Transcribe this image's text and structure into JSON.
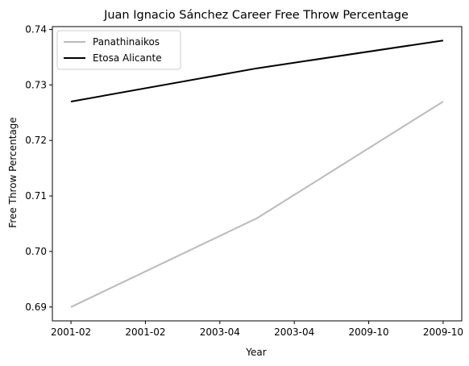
{
  "chart_data": {
    "type": "line",
    "title": "Juan Ignacio Sánchez Career Free Throw Percentage",
    "xlabel": "Year",
    "ylabel": "Free Throw Percentage",
    "x_tick_labels": [
      "2001-02",
      "2001-02",
      "2003-04",
      "2003-04",
      "2009-10",
      "2009-10"
    ],
    "x_range": [
      -0.1,
      2.1
    ],
    "x_tick_positions": [
      0,
      0.4,
      0.8,
      1.2,
      1.6,
      2.0
    ],
    "y_ticks": [
      0.69,
      0.7,
      0.71,
      0.72,
      0.73,
      0.74
    ],
    "y_tick_labels": [
      "0.69",
      "0.70",
      "0.71",
      "0.72",
      "0.73",
      "0.74"
    ],
    "ylim": [
      0.6875,
      0.7405
    ],
    "x": [
      "2001-02",
      "2003-04",
      "2009-10"
    ],
    "series": [
      {
        "name": "Panathinaikos",
        "values": [
          0.69,
          0.706,
          0.727
        ],
        "color": "#bbbbbb"
      },
      {
        "name": "Etosa Alicante",
        "values": [
          0.727,
          0.733,
          0.738
        ],
        "color": "#000000"
      }
    ],
    "legend_position": "top-left",
    "grid": false
  }
}
